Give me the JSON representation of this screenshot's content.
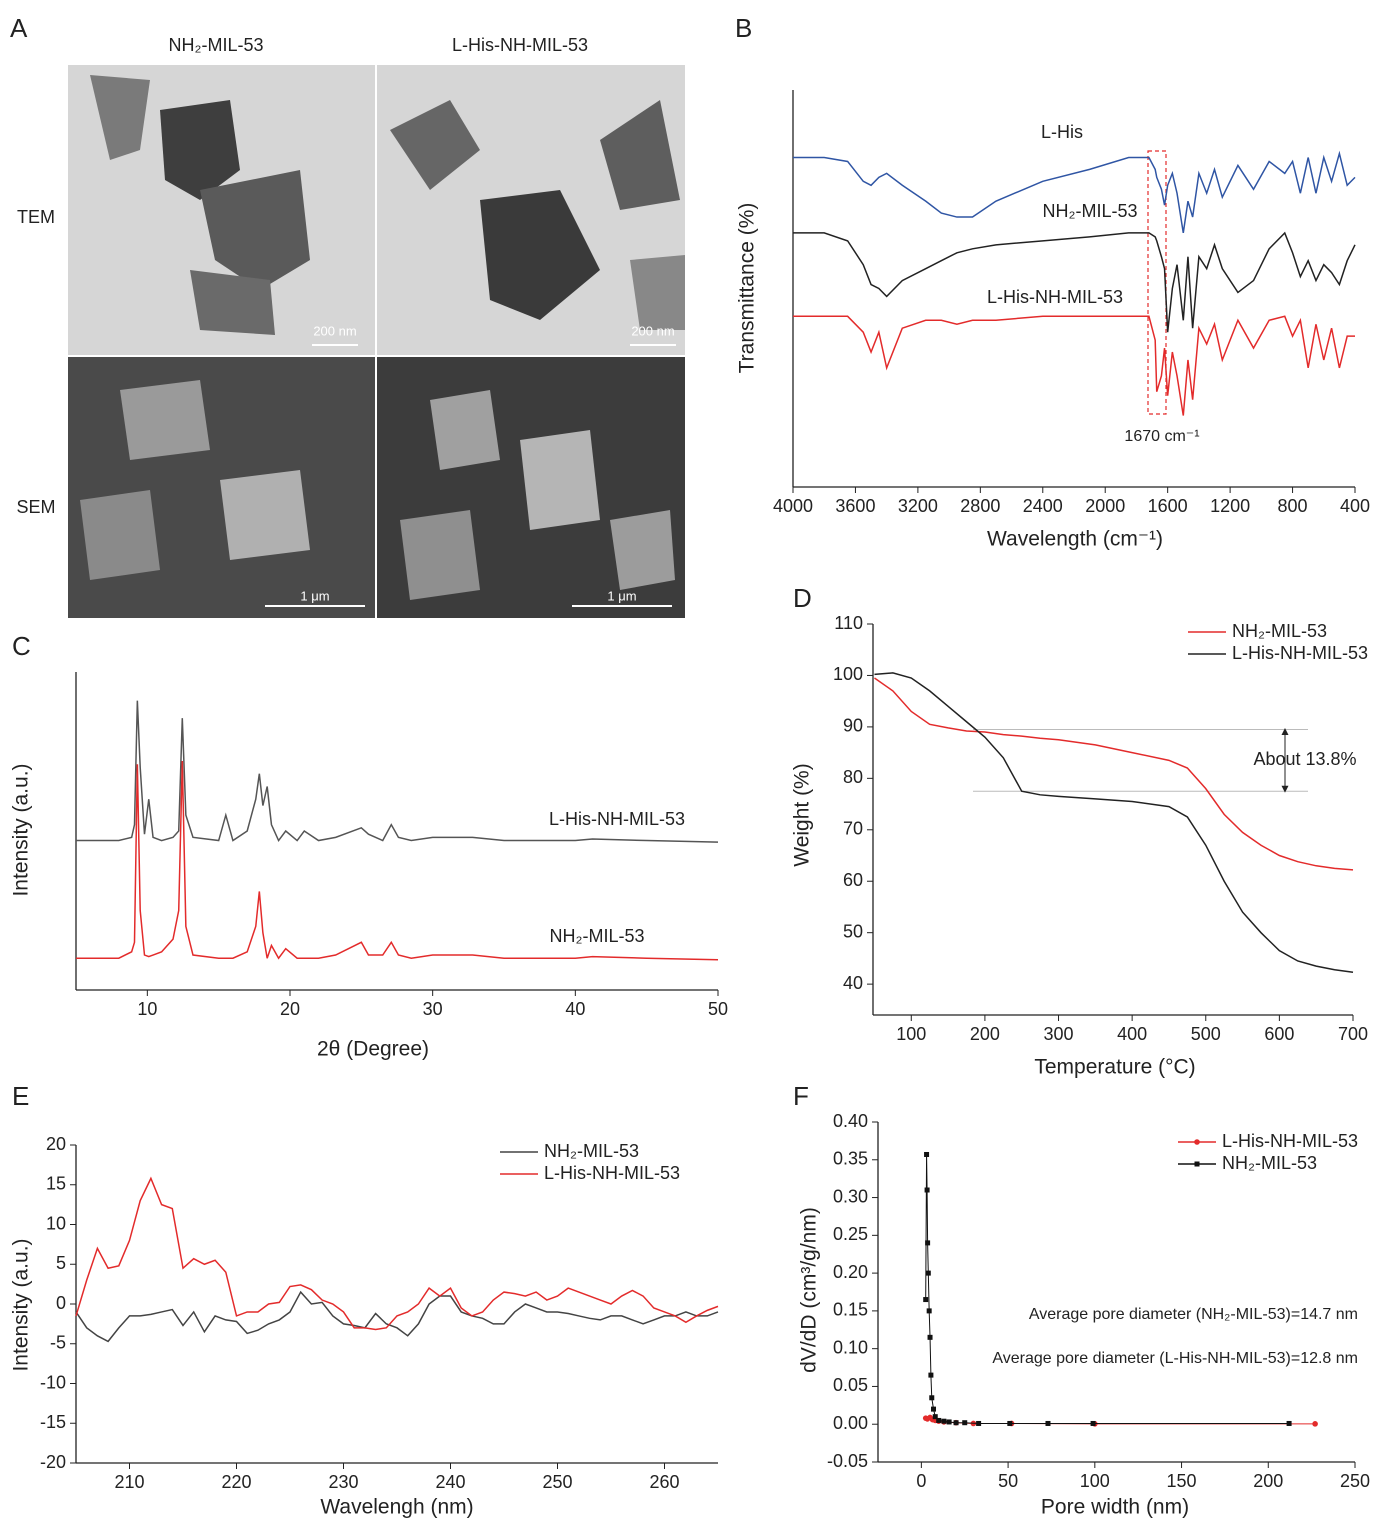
{
  "panel_a": {
    "panel": "A",
    "columns": [
      "NH₂-MIL-53",
      "L-His-NH-MIL-53"
    ],
    "rows": [
      "TEM",
      "SEM"
    ],
    "scale_bars": [
      "200 nm",
      "200 nm",
      "1 μm",
      "1 μm"
    ]
  },
  "chart_data": [
    {
      "type": "line",
      "panel": "B",
      "x_label": "Wavelength (cm⁻¹)",
      "y_label": "Transmittance (%)",
      "annotation": "1670 cm⁻¹",
      "xlim": [
        4000,
        400
      ],
      "xticks": [
        4000,
        3600,
        3200,
        2800,
        2400,
        2000,
        1600,
        1200,
        800,
        400
      ],
      "ylim": [
        0,
        100
      ],
      "x": [
        4000,
        3800,
        3650,
        3550,
        3500,
        3450,
        3400,
        3300,
        3150,
        3050,
        2950,
        2850,
        2700,
        2400,
        2100,
        1850,
        1720,
        1680,
        1670,
        1640,
        1620,
        1600,
        1570,
        1540,
        1500,
        1470,
        1440,
        1400,
        1350,
        1300,
        1250,
        1150,
        1050,
        950,
        850,
        800,
        750,
        700,
        650,
        600,
        550,
        500,
        450,
        400
      ],
      "series": [
        {
          "name": "L-His",
          "color": "#2f55a4",
          "values": [
            83,
            83,
            82,
            77,
            76,
            78,
            79,
            76,
            72,
            69,
            68,
            68,
            72,
            77,
            80,
            83,
            83,
            80,
            78,
            75,
            71,
            76,
            79,
            74,
            64,
            72,
            68,
            79,
            74,
            80,
            73,
            81,
            75,
            82,
            79,
            82,
            74,
            83,
            74,
            83,
            77,
            84,
            76,
            78
          ]
        },
        {
          "name": "NH₂-MIL-53",
          "color": "#222222",
          "values": [
            64,
            64,
            62,
            56,
            51,
            50,
            48,
            52,
            55,
            57,
            59,
            60,
            61,
            62,
            63,
            64,
            64,
            63,
            62,
            58,
            55,
            39,
            50,
            56,
            42,
            58,
            40,
            58,
            55,
            61,
            55,
            49,
            52,
            60,
            64,
            59,
            53,
            57,
            52,
            56,
            54,
            51,
            57,
            61
          ]
        },
        {
          "name": "L-His-NH-MIL-53",
          "color": "#e32b2b",
          "values": [
            43,
            43,
            43,
            39,
            34,
            39,
            30,
            40,
            42,
            42,
            41,
            42,
            42,
            43,
            43,
            43,
            43,
            37,
            24,
            28,
            35,
            23,
            34,
            28,
            18,
            32,
            22,
            40,
            36,
            41,
            32,
            42,
            35,
            42,
            43,
            38,
            42,
            30,
            41,
            32,
            40,
            30,
            38,
            38
          ]
        }
      ]
    },
    {
      "type": "line",
      "panel": "C",
      "x_label": "2θ (Degree)",
      "y_label": "Intensity (a.u.)",
      "xlim": [
        5,
        50
      ],
      "xticks": [
        10,
        20,
        30,
        40,
        50
      ],
      "ylim": [
        0,
        100
      ],
      "x": [
        5,
        8,
        8.9,
        9.1,
        9.3,
        9.5,
        9.8,
        10.1,
        10.4,
        11,
        11.8,
        12.2,
        12.45,
        12.7,
        13.2,
        15,
        15.5,
        16,
        17,
        17.6,
        17.85,
        18.1,
        18.4,
        18.7,
        19.2,
        19.7,
        20.5,
        21,
        22,
        23.2,
        25,
        25.5,
        26.5,
        27.1,
        27.6,
        28.5,
        30,
        32.8,
        35,
        40,
        41.2,
        45,
        50
      ],
      "series": [
        {
          "name": "L-His-NH-MIL-53",
          "color": "#555555",
          "values": [
            47,
            47,
            48,
            52,
            91,
            70,
            49,
            60,
            48,
            47,
            48,
            50,
            85.5,
            55,
            48,
            47,
            55,
            47,
            50,
            60,
            68,
            58,
            64,
            52,
            47,
            50,
            47,
            50,
            47,
            48,
            51,
            49,
            47,
            52,
            48,
            47,
            48,
            48,
            47,
            47,
            47.5,
            47,
            46.5
          ]
        },
        {
          "name": "NH₂-MIL-53",
          "color": "#e32b2b",
          "values": [
            10,
            10,
            12,
            15,
            71,
            25,
            11,
            10.5,
            11,
            12,
            16,
            25,
            72,
            20,
            11,
            10,
            10,
            10,
            12,
            20,
            31,
            18,
            10,
            14,
            10,
            13,
            10,
            10,
            10,
            11,
            15,
            11,
            11,
            15,
            11,
            10,
            11,
            11,
            10,
            10,
            10.5,
            10,
            9.5
          ]
        }
      ]
    },
    {
      "type": "line",
      "panel": "D",
      "x_label": "Temperature (°C)",
      "y_label": "Weight (%)",
      "annotation": "About 13.8%",
      "reference_lines": [
        89.5,
        77.5
      ],
      "xlim": [
        48,
        700
      ],
      "xticks": [
        100,
        200,
        300,
        400,
        500,
        600,
        700
      ],
      "ylim": [
        34,
        110
      ],
      "yticks": [
        40,
        50,
        60,
        70,
        80,
        90,
        100,
        110
      ],
      "x": [
        50,
        75,
        100,
        125,
        150,
        175,
        200,
        225,
        250,
        275,
        300,
        350,
        400,
        450,
        475,
        500,
        525,
        550,
        575,
        600,
        625,
        650,
        675,
        700
      ],
      "series": [
        {
          "name": "NH₂-MIL-53",
          "color": "#e32b2b",
          "values": [
            99.5,
            97,
            93,
            90.5,
            89.8,
            89.2,
            89,
            88.5,
            88.2,
            87.8,
            87.5,
            86.5,
            85,
            83.5,
            82,
            78,
            73,
            69.5,
            67,
            65,
            63.8,
            63,
            62.5,
            62.2
          ]
        },
        {
          "name": "L-His-NH-MIL-53",
          "color": "#222222",
          "values": [
            100.2,
            100.5,
            99.5,
            97,
            94,
            91,
            88,
            84,
            77.5,
            76.8,
            76.5,
            76,
            75.5,
            74.5,
            72.5,
            67,
            60,
            54,
            50,
            46.5,
            44.5,
            43.5,
            42.8,
            42.3
          ]
        }
      ]
    },
    {
      "type": "line",
      "panel": "E",
      "x_label": "Wavelengh (nm)",
      "y_label": "Intensity (a.u.)",
      "xlim": [
        205,
        265
      ],
      "xticks": [
        210,
        220,
        230,
        240,
        250,
        260
      ],
      "ylim": [
        -20,
        20
      ],
      "yticks": [
        -20,
        -15,
        -10,
        -5,
        0,
        5,
        10,
        15,
        20
      ],
      "x": [
        205,
        206,
        207,
        208,
        209,
        210,
        211,
        212,
        213,
        214,
        215,
        216,
        217,
        218,
        219,
        220,
        221,
        222,
        223,
        224,
        225,
        226,
        227,
        228,
        229,
        230,
        231,
        232,
        233,
        234,
        235,
        236,
        237,
        238,
        239,
        240,
        241,
        242,
        243,
        244,
        245,
        246,
        247,
        248,
        249,
        250,
        251,
        252,
        253,
        254,
        255,
        256,
        257,
        258,
        259,
        260,
        261,
        262,
        263,
        264,
        265
      ],
      "series": [
        {
          "name": "NH₂-MIL-53",
          "color": "#444444",
          "values": [
            -1,
            -3,
            -4,
            -4.7,
            -3,
            -1.5,
            -1.5,
            -1.3,
            -1,
            -0.7,
            -2.7,
            -1,
            -3.5,
            -1.5,
            -2,
            -2.2,
            -3.7,
            -3.3,
            -2.5,
            -2,
            -1,
            1.5,
            0,
            0.2,
            -1.5,
            -2.5,
            -2.7,
            -3,
            -1.2,
            -2.5,
            -3,
            -4,
            -2.5,
            0,
            1,
            1,
            -1,
            -1.5,
            -1.8,
            -2.5,
            -2.5,
            -1,
            0,
            -0.5,
            -1,
            -1,
            -1.2,
            -1.5,
            -1.8,
            -2,
            -1.5,
            -1.5,
            -2,
            -2.5,
            -2,
            -1.5,
            -1.5,
            -1,
            -1.5,
            -1.5,
            -1
          ]
        },
        {
          "name": "L-His-NH-MIL-53",
          "color": "#e32b2b",
          "values": [
            -1.5,
            3,
            7,
            4.5,
            4.8,
            8,
            13,
            15.8,
            12.5,
            12,
            4.5,
            5.7,
            5,
            5.5,
            4,
            -1.5,
            -1,
            -1,
            0,
            0.2,
            2.2,
            2.4,
            1.8,
            0.5,
            0,
            -1,
            -3,
            -3,
            -3.2,
            -3,
            -1.5,
            -1,
            0,
            2,
            1,
            2,
            -0.5,
            -1.5,
            -1,
            0.5,
            1.5,
            1.3,
            1,
            1.5,
            0.5,
            1,
            2,
            1.5,
            1,
            0.5,
            0,
            1,
            1.7,
            1,
            -0.5,
            -1,
            -1.5,
            -2.3,
            -1.5,
            -0.8,
            -0.3
          ]
        }
      ]
    },
    {
      "type": "line",
      "panel": "F",
      "x_label": "Pore width (nm)",
      "y_label": "dV/dD (cm³/g/nm)",
      "markers": true,
      "annotations": [
        "Average pore diameter (NH₂-MIL-53)=14.7 nm",
        "Average pore diameter (L-His-NH-MIL-53)=12.8 nm"
      ],
      "xlim": [
        -25,
        250
      ],
      "xticks": [
        0,
        50,
        100,
        150,
        200,
        250
      ],
      "ylim": [
        -0.05,
        0.4
      ],
      "yticks": [
        -0.05,
        {
          "value": 0,
          "label": "0.00"
        },
        0.05,
        {
          "value": 0.1,
          "label": "0.10"
        },
        0.15,
        {
          "value": 0.2,
          "label": "0.20"
        },
        0.25,
        {
          "value": 0.3,
          "label": "0.30"
        },
        0.35,
        {
          "value": 0.4,
          "label": "0.40"
        }
      ],
      "series": [
        {
          "name": "L-His-NH-MIL-53",
          "color": "#e32b2b",
          "marker": "circle",
          "x": [
            2.5,
            3.5,
            5,
            6.5,
            8,
            10,
            13,
            20,
            30,
            52,
            100,
            227
          ],
          "values": [
            0.008,
            0.007,
            0.009,
            0.006,
            0.005,
            0.004,
            0.003,
            0.002,
            0.001,
            0.001,
            0.0005,
            0.0005
          ]
        },
        {
          "name": "NH₂-MIL-53",
          "color": "#111111",
          "marker": "square",
          "x": [
            2.5,
            3,
            3.3,
            3.6,
            4,
            4.5,
            5,
            5.5,
            6,
            7,
            8,
            10,
            13,
            16,
            20,
            25,
            33,
            51,
            73,
            99,
            212
          ],
          "values": [
            0.165,
            0.357,
            0.31,
            0.24,
            0.2,
            0.15,
            0.115,
            0.065,
            0.035,
            0.02,
            0.01,
            0.005,
            0.004,
            0.003,
            0.002,
            0.002,
            0.001,
            0.001,
            0.001,
            0.001,
            0.001
          ]
        }
      ]
    }
  ]
}
